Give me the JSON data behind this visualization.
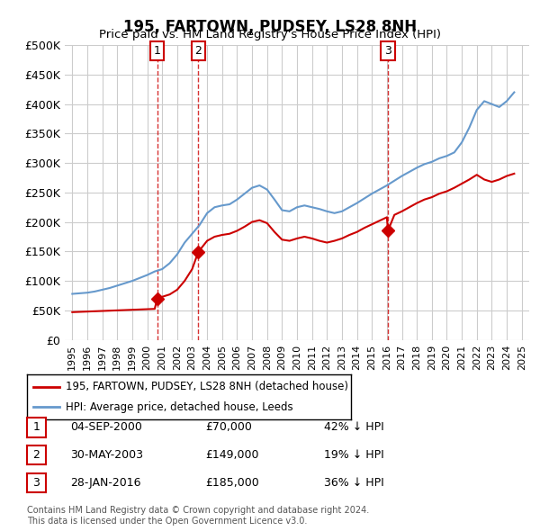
{
  "title": "195, FARTOWN, PUDSEY, LS28 8NH",
  "subtitle": "Price paid vs. HM Land Registry's House Price Index (HPI)",
  "ylabel": "",
  "ylim": [
    0,
    500000
  ],
  "yticks": [
    0,
    50000,
    100000,
    150000,
    200000,
    250000,
    300000,
    350000,
    400000,
    450000,
    500000
  ],
  "ytick_labels": [
    "£0",
    "£50K",
    "£100K",
    "£150K",
    "£200K",
    "£250K",
    "£300K",
    "£350K",
    "£400K",
    "£450K",
    "£500K"
  ],
  "xlim_start": 1994.5,
  "xlim_end": 2025.5,
  "transactions": [
    {
      "label": "1",
      "year": 2000.67,
      "price": 70000,
      "date": "04-SEP-2000",
      "pct": "42% ↓ HPI"
    },
    {
      "label": "2",
      "year": 2003.41,
      "price": 149000,
      "date": "30-MAY-2003",
      "pct": "19% ↓ HPI"
    },
    {
      "label": "3",
      "year": 2016.07,
      "price": 185000,
      "date": "28-JAN-2016",
      "pct": "36% ↓ HPI"
    }
  ],
  "property_color": "#cc0000",
  "hpi_color": "#6699cc",
  "transaction_marker_color": "#cc0000",
  "grid_color": "#cccccc",
  "background_color": "#ffffff",
  "legend_label_property": "195, FARTOWN, PUDSEY, LS28 8NH (detached house)",
  "legend_label_hpi": "HPI: Average price, detached house, Leeds",
  "footer": "Contains HM Land Registry data © Crown copyright and database right 2024.\nThis data is licensed under the Open Government Licence v3.0.",
  "hpi_data_x": [
    1995,
    1995.5,
    1996,
    1996.5,
    1997,
    1997.5,
    1998,
    1998.5,
    1999,
    1999.5,
    2000,
    2000.5,
    2001,
    2001.5,
    2002,
    2002.5,
    2003,
    2003.5,
    2004,
    2004.5,
    2005,
    2005.5,
    2006,
    2006.5,
    2007,
    2007.5,
    2008,
    2008.5,
    2009,
    2009.5,
    2010,
    2010.5,
    2011,
    2011.5,
    2012,
    2012.5,
    2013,
    2013.5,
    2014,
    2014.5,
    2015,
    2015.5,
    2016,
    2016.5,
    2017,
    2017.5,
    2018,
    2018.5,
    2019,
    2019.5,
    2020,
    2020.5,
    2021,
    2021.5,
    2022,
    2022.5,
    2023,
    2023.5,
    2024,
    2024.5
  ],
  "hpi_data_y": [
    78000,
    79000,
    80000,
    82000,
    85000,
    88000,
    92000,
    96000,
    100000,
    105000,
    110000,
    116000,
    120000,
    130000,
    145000,
    165000,
    180000,
    195000,
    215000,
    225000,
    228000,
    230000,
    238000,
    248000,
    258000,
    262000,
    255000,
    238000,
    220000,
    218000,
    225000,
    228000,
    225000,
    222000,
    218000,
    215000,
    218000,
    225000,
    232000,
    240000,
    248000,
    255000,
    262000,
    270000,
    278000,
    285000,
    292000,
    298000,
    302000,
    308000,
    312000,
    318000,
    335000,
    360000,
    390000,
    405000,
    400000,
    395000,
    405000,
    420000
  ],
  "property_data_x": [
    1995,
    1995.5,
    1996,
    1996.5,
    1997,
    1997.5,
    1998,
    1998.5,
    1999,
    1999.5,
    2000,
    2000.5,
    2000.67,
    2001,
    2001.5,
    2002,
    2002.5,
    2003,
    2003.41,
    2003.5,
    2004,
    2004.5,
    2005,
    2005.5,
    2006,
    2006.5,
    2007,
    2007.5,
    2008,
    2008.5,
    2009,
    2009.5,
    2010,
    2010.5,
    2011,
    2011.5,
    2012,
    2012.5,
    2013,
    2013.5,
    2014,
    2014.5,
    2015,
    2015.5,
    2016,
    2016.07,
    2016.5,
    2017,
    2017.5,
    2018,
    2018.5,
    2019,
    2019.5,
    2020,
    2020.5,
    2021,
    2021.5,
    2022,
    2022.5,
    2023,
    2023.5,
    2024,
    2024.5
  ],
  "property_data_y": [
    47000,
    47500,
    48000,
    48500,
    49000,
    49500,
    50000,
    50500,
    51000,
    51500,
    52000,
    52500,
    70000,
    73000,
    77000,
    85000,
    100000,
    120000,
    149000,
    152000,
    168000,
    175000,
    178000,
    180000,
    185000,
    192000,
    200000,
    203000,
    198000,
    183000,
    170000,
    168000,
    172000,
    175000,
    172000,
    168000,
    165000,
    168000,
    172000,
    178000,
    183000,
    190000,
    196000,
    202000,
    208000,
    185000,
    212000,
    218000,
    225000,
    232000,
    238000,
    242000,
    248000,
    252000,
    258000,
    265000,
    272000,
    280000,
    272000,
    268000,
    272000,
    278000,
    282000
  ]
}
